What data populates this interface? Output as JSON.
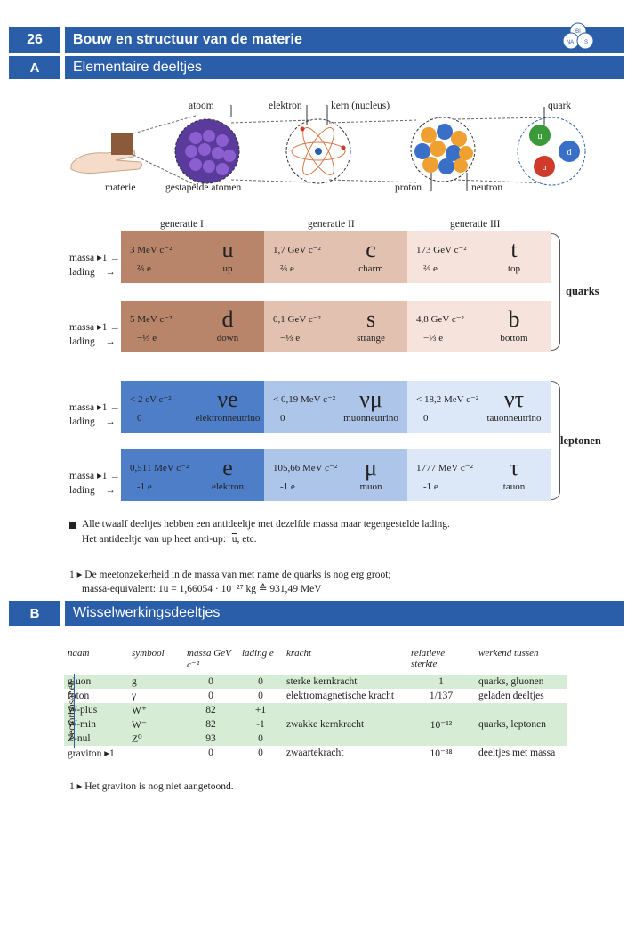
{
  "header": {
    "page_number": "26",
    "title": "Bouw en structuur van de materie",
    "badge": [
      "BI",
      "NA",
      "S"
    ]
  },
  "sectionA": {
    "letter": "A",
    "title": "Elementaire deeltjes"
  },
  "illustration": {
    "materie": "materie",
    "atoom": "atoom",
    "gestapelde": "gestapelde atomen",
    "elektron": "elektron",
    "kern": "kern (nucleus)",
    "proton": "proton",
    "neutron": "neutron",
    "quark": "quark",
    "quark_letters": [
      "u",
      "d",
      "u"
    ]
  },
  "generations": [
    "generatie I",
    "generatie II",
    "generatie III"
  ],
  "row_labels": {
    "massa": "massa",
    "lading": "lading",
    "arrow": "→",
    "footmark": "▸1"
  },
  "quarks_label": "quarks",
  "leptonen_label": "leptonen",
  "quark_rows": [
    [
      {
        "mass": "3 MeV c⁻²",
        "charge": "⅔ e",
        "symbol": "u",
        "name": "up"
      },
      {
        "mass": "1,7 GeV c⁻²",
        "charge": "⅔ e",
        "symbol": "c",
        "name": "charm"
      },
      {
        "mass": "173 GeV c⁻²",
        "charge": "⅔ e",
        "symbol": "t",
        "name": "top"
      }
    ],
    [
      {
        "mass": "5 MeV c⁻²",
        "charge": "−⅓ e",
        "symbol": "d",
        "name": "down"
      },
      {
        "mass": "0,1 GeV c⁻²",
        "charge": "−⅓ e",
        "symbol": "s",
        "name": "strange"
      },
      {
        "mass": "4,8 GeV c⁻²",
        "charge": "−⅓ e",
        "symbol": "b",
        "name": "bottom"
      }
    ]
  ],
  "lepton_rows": [
    [
      {
        "mass": "< 2 eV c⁻²",
        "charge": "0",
        "symbol": "νe",
        "name": "elektronneutrino"
      },
      {
        "mass": "< 0,19 MeV c⁻²",
        "charge": "0",
        "symbol": "νμ",
        "name": "muonneutrino"
      },
      {
        "mass": "< 18,2 MeV c⁻²",
        "charge": "0",
        "symbol": "ντ",
        "name": "tauonneutrino"
      }
    ],
    [
      {
        "mass": "0,511 MeV c⁻²",
        "charge": "-1 e",
        "symbol": "e",
        "name": "elektron"
      },
      {
        "mass": "105,66 MeV c⁻²",
        "charge": "-1 e",
        "symbol": "μ",
        "name": "muon"
      },
      {
        "mass": "1777 MeV c⁻²",
        "charge": "-1 e",
        "symbol": "τ",
        "name": "tauon"
      }
    ]
  ],
  "notes": {
    "antiparticle_1": "Alle twaalf deeltjes hebben een antideeltje met dezelfde massa maar tegengestelde lading.",
    "antiparticle_2": "Het antideeltje van up heet anti-up:",
    "antiparticle_symbol": "u",
    "antiparticle_tail": ", etc.",
    "footnote1_1": "1 ▸ De meetonzekerheid in de massa van met name de quarks is nog erg groot;",
    "footnote1_2": "massa-equivalent: 1u = 1,66054 · 10⁻²⁷ kg ≙ 931,49 MeV"
  },
  "sectionB": {
    "letter": "B",
    "title": "Wisselwerkingsdeeltjes"
  },
  "ww_headers": [
    "naam",
    "symbool",
    "massa GeV c⁻²",
    "lading e",
    "kracht",
    "relatieve sterkte",
    "werkend tussen"
  ],
  "vectorbosonen_label": "vectorbosonen",
  "ww_rows": [
    {
      "naam": "gluon",
      "symbool": "g",
      "massa": "0",
      "lading": "0",
      "kracht": "sterke kernkracht",
      "sterkte": "1",
      "tussen": "quarks, gluonen"
    },
    {
      "naam": "foton",
      "symbool": "γ",
      "massa": "0",
      "lading": "0",
      "kracht": "elektromagnetische kracht",
      "sterkte": "1/137",
      "tussen": "geladen deeltjes"
    },
    {
      "naam": "W-plus",
      "symbool": "W⁺",
      "massa": "82",
      "lading": "+1",
      "kracht": "",
      "sterkte": "",
      "tussen": ""
    },
    {
      "naam": "W-min",
      "symbool": "W⁻",
      "massa": "82",
      "lading": "-1",
      "kracht": "zwakke kernkracht",
      "sterkte": "10⁻¹³",
      "tussen": "quarks, leptonen"
    },
    {
      "naam": "Z-nul",
      "symbool": "Z⁰",
      "massa": "93",
      "lading": "0",
      "kracht": "",
      "sterkte": "",
      "tussen": ""
    },
    {
      "naam": "graviton ▸1",
      "symbool": "",
      "massa": "0",
      "lading": "0",
      "kracht": "zwaartekracht",
      "sterkte": "10⁻³⁸",
      "tussen": "deeltjes met massa"
    }
  ],
  "footnote2": "1 ▸ Het graviton is nog niet aangetoond."
}
